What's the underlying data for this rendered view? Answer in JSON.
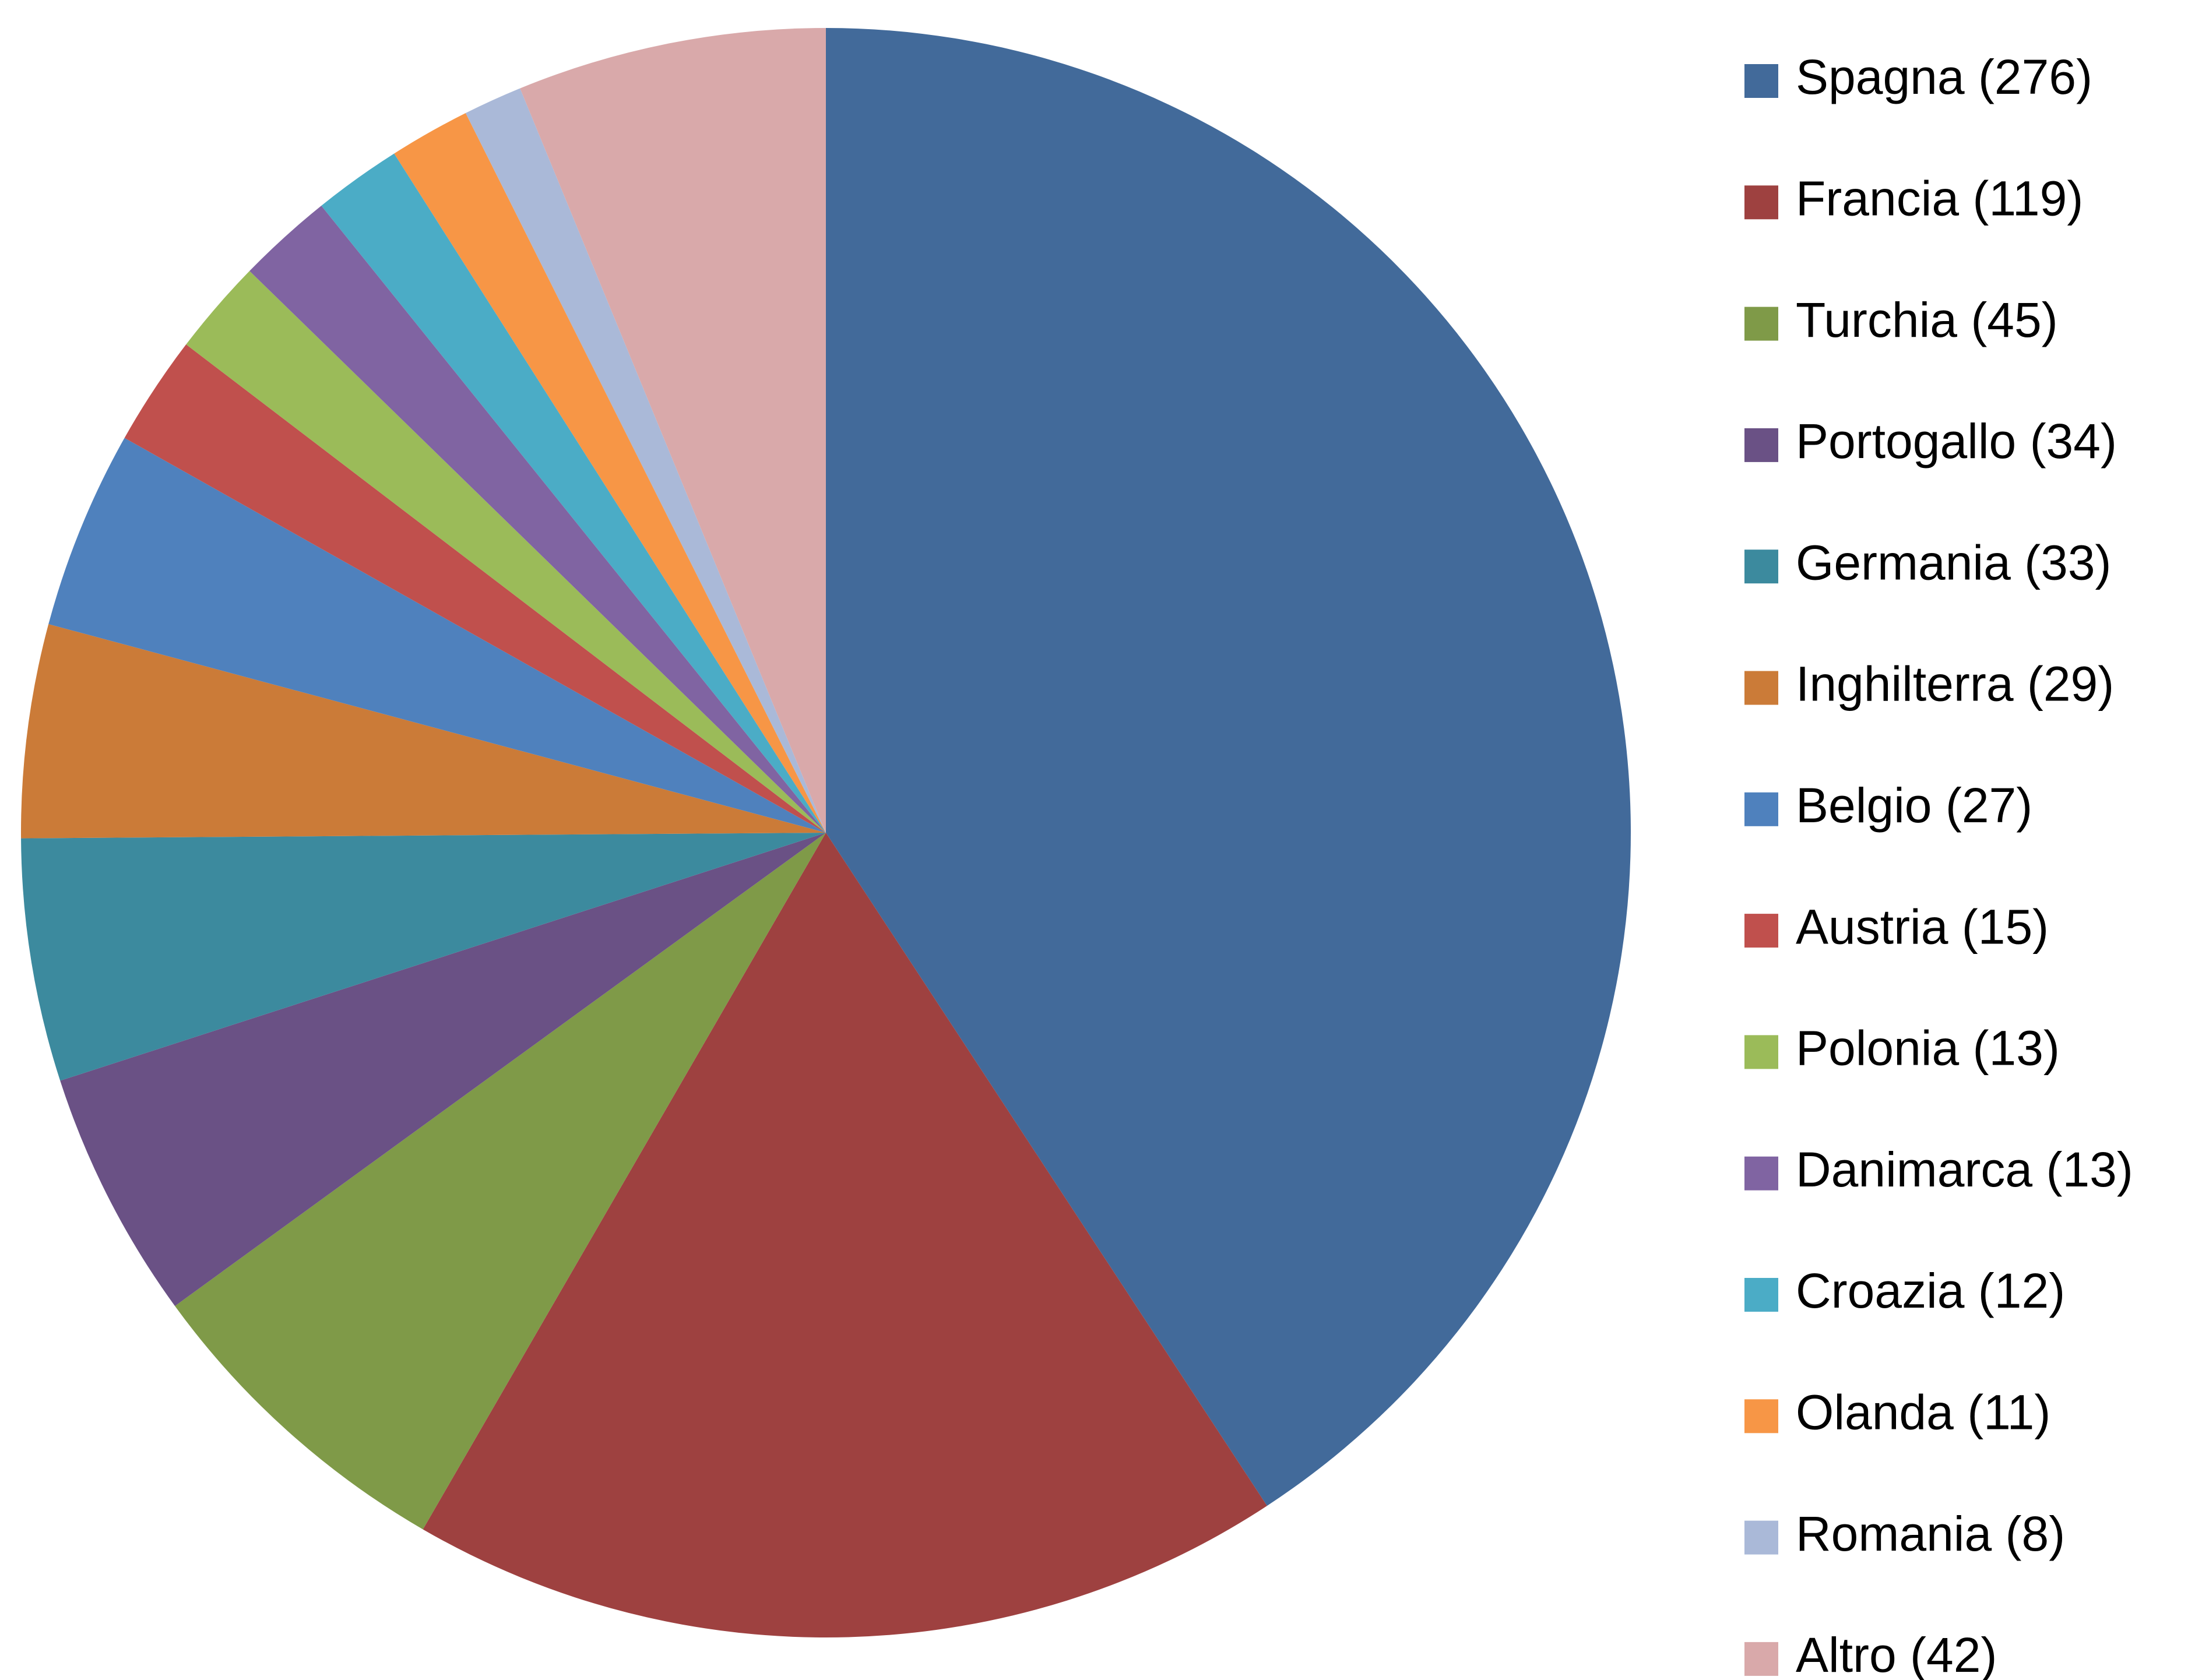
{
  "chart_data": {
    "type": "pie",
    "categories": [
      "Spagna (276)",
      "Francia (119)",
      "Turchia (45)",
      "Portogallo (34)",
      "Germania (33)",
      "Inghilterra (29)",
      "Belgio (27)",
      "Austria (15)",
      "Polonia (13)",
      "Danimarca (13)",
      "Croazia (12)",
      "Olanda (11)",
      "Romania (8)",
      "Altro (42)"
    ],
    "values": [
      276,
      119,
      45,
      34,
      33,
      29,
      27,
      15,
      13,
      13,
      12,
      11,
      8,
      42
    ],
    "colors": [
      "#426a9a",
      "#9e4140",
      "#7f9a48",
      "#6a5185",
      "#3c8a9e",
      "#cb7b38",
      "#4f81bd",
      "#c0504d",
      "#9bbb59",
      "#8064a2",
      "#4bacc6",
      "#f79646",
      "#aab9d8",
      "#d9a9aa"
    ],
    "legend": "right"
  }
}
